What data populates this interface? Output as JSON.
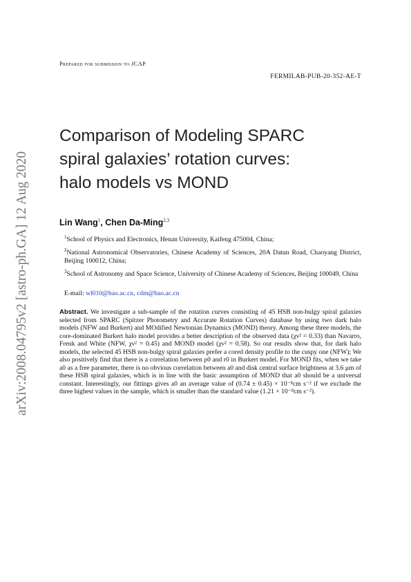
{
  "header": {
    "note": "Prepared for submission to JCAP",
    "report_number": "FERMILAB-PUB-20-352-AE-T"
  },
  "arxiv_id": "arXiv:2008.04795v2  [astro-ph.GA]  12 Aug 2020",
  "title": [
    "Comparison of Modeling SPARC",
    "spiral galaxies’ rotation curves:",
    "halo models vs MOND"
  ],
  "authors": [
    {
      "name": "Lin Wang",
      "affil": "1"
    },
    {
      "name": "Chen Da-Ming",
      "affil": "2,3"
    }
  ],
  "author_separator": ", ",
  "affiliations": [
    {
      "mark": "1",
      "text": "School of Physics and Electronics, Henan University, Kaifeng 475004, China;"
    },
    {
      "mark": "2",
      "text": "National Astronomical Observatories, Chinese Academy of Sciences, 20A Datun Road, Chaoyang District, Beijing 100012, China;"
    },
    {
      "mark": "3",
      "text": "School of Astronomy and Space Science, University of Chinese Academy of Sciences, Beijing 100049, China"
    }
  ],
  "email": {
    "label": "E-mail:",
    "addresses": "wl010@bao.ac.cn, cdm@bao.ac.cn"
  },
  "abstract": {
    "label": "Abstract.",
    "text": "We investigate a sub-sample of the rotation curves consisting of 45 HSB non-bulgy spiral galaxies selected from SPARC (Spitzer Photometry and Accurate Rotation Curves) database by using two dark halo models (NFW and Burkert) and MOdified Newtonian Dynamics (MOND) theory. Among these three models, the core-dominated Burkert halo model provides a better description of the observed data (χν² = 0.33) than Navarro, Frenk and White (NFW, χν² = 0.45) and MOND model (χν² = 0.58). So our results show that, for dark halo models, the selected 45 HSB non-bulgy spiral galaxies prefer a cored density profile to the cuspy one (NFW); We also positively find that there is a correlation between ρ0 and r0 in Burkert model. For MOND fits, when we take a0 as a free parameter, there is no obvious correlation between a0 and disk central surface brightness at 3.6 μm of these HSB spiral galaxies, which is in line with the basic assumption of MOND that a0 should be a universal constant. Interestingly, our fittings gives a0 an average value of (0.74 ± 0.45) × 10⁻⁸cm s⁻² if we exclude the three highest values in the sample, which is smaller than the standard value (1.21 × 10⁻⁸cm s⁻²)."
  }
}
